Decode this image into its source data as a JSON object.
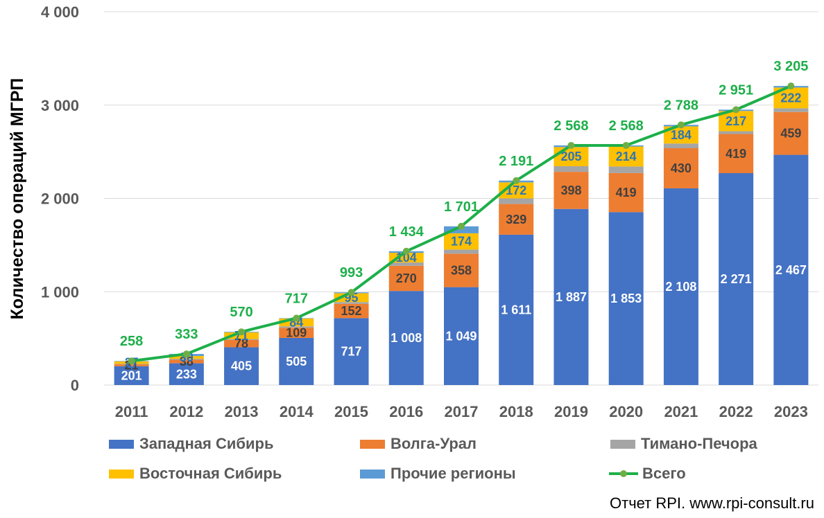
{
  "chart_data": {
    "type": "bar",
    "stacked": true,
    "ylabel": "Количество операций МГРП",
    "ylim": [
      0,
      4000
    ],
    "yticks": [
      0,
      1000,
      2000,
      3000,
      4000
    ],
    "ytick_labels": [
      "0",
      "1 000",
      "2 000",
      "3 000",
      "4 000"
    ],
    "grid": true,
    "legend_position": "bottom",
    "categories": [
      "2011",
      "2012",
      "2013",
      "2014",
      "2015",
      "2016",
      "2017",
      "2018",
      "2019",
      "2020",
      "2021",
      "2022",
      "2023"
    ],
    "series": [
      {
        "name": "Западная Сибирь",
        "color": "#4472C4",
        "values": [
          201,
          233,
          405,
          505,
          717,
          1008,
          1049,
          1611,
          1887,
          1853,
          2108,
          2271,
          2467
        ],
        "labels": [
          "201",
          "233",
          "405",
          "505",
          "717",
          "1 008",
          "1 049",
          "1 611",
          "1 887",
          "1 853",
          "2 108",
          "2 271",
          "2 467"
        ]
      },
      {
        "name": "Волга-Урал",
        "color": "#ED7D31",
        "values": [
          21,
          38,
          78,
          109,
          152,
          270,
          358,
          329,
          398,
          419,
          430,
          419,
          459
        ],
        "labels": [
          "21",
          "38",
          "78",
          "109",
          "152",
          "270",
          "358",
          "329",
          "398",
          "419",
          "430",
          "419",
          "459"
        ]
      },
      {
        "name": "Тимано-Печора",
        "color": "#A5A5A5",
        "values": [
          5,
          10,
          10,
          15,
          20,
          35,
          45,
          60,
          60,
          70,
          50,
          30,
          40
        ],
        "labels": []
      },
      {
        "name": "Восточная Сибирь",
        "color": "#FFC000",
        "values": [
          27,
          30,
          71,
          84,
          95,
          104,
          174,
          172,
          205,
          214,
          184,
          217,
          222
        ],
        "labels": [
          "27",
          "30",
          "71",
          "84",
          "95",
          "104",
          "174",
          "172",
          "205",
          "214",
          "184",
          "217",
          "222"
        ]
      },
      {
        "name": "Прочие регионы",
        "color": "#5B9BD5",
        "values": [
          4,
          22,
          6,
          4,
          9,
          17,
          75,
          19,
          18,
          12,
          16,
          14,
          17
        ],
        "labels": []
      }
    ],
    "total": {
      "name": "Всего",
      "color": "#1DAF4A",
      "values": [
        258,
        333,
        570,
        717,
        993,
        1434,
        1701,
        2191,
        2568,
        2568,
        2788,
        2951,
        3205
      ],
      "labels": [
        "258",
        "333",
        "570",
        "717",
        "993",
        "1 434",
        "1 701",
        "2 191",
        "2 568",
        "2 568",
        "2 788",
        "2 951",
        "3 205"
      ]
    }
  },
  "legend": {
    "items": [
      {
        "label": "Западная Сибирь",
        "color": "#4472C4"
      },
      {
        "label": "Волга-Урал",
        "color": "#ED7D31"
      },
      {
        "label": "Тимано-Печора",
        "color": "#A5A5A5"
      },
      {
        "label": "Восточная Сибирь",
        "color": "#FFC000"
      },
      {
        "label": "Прочие регионы",
        "color": "#5B9BD5"
      },
      {
        "label": "Всего",
        "color": "#1DAF4A"
      }
    ]
  },
  "source": "Отчет RPI. www.rpi-consult.ru"
}
